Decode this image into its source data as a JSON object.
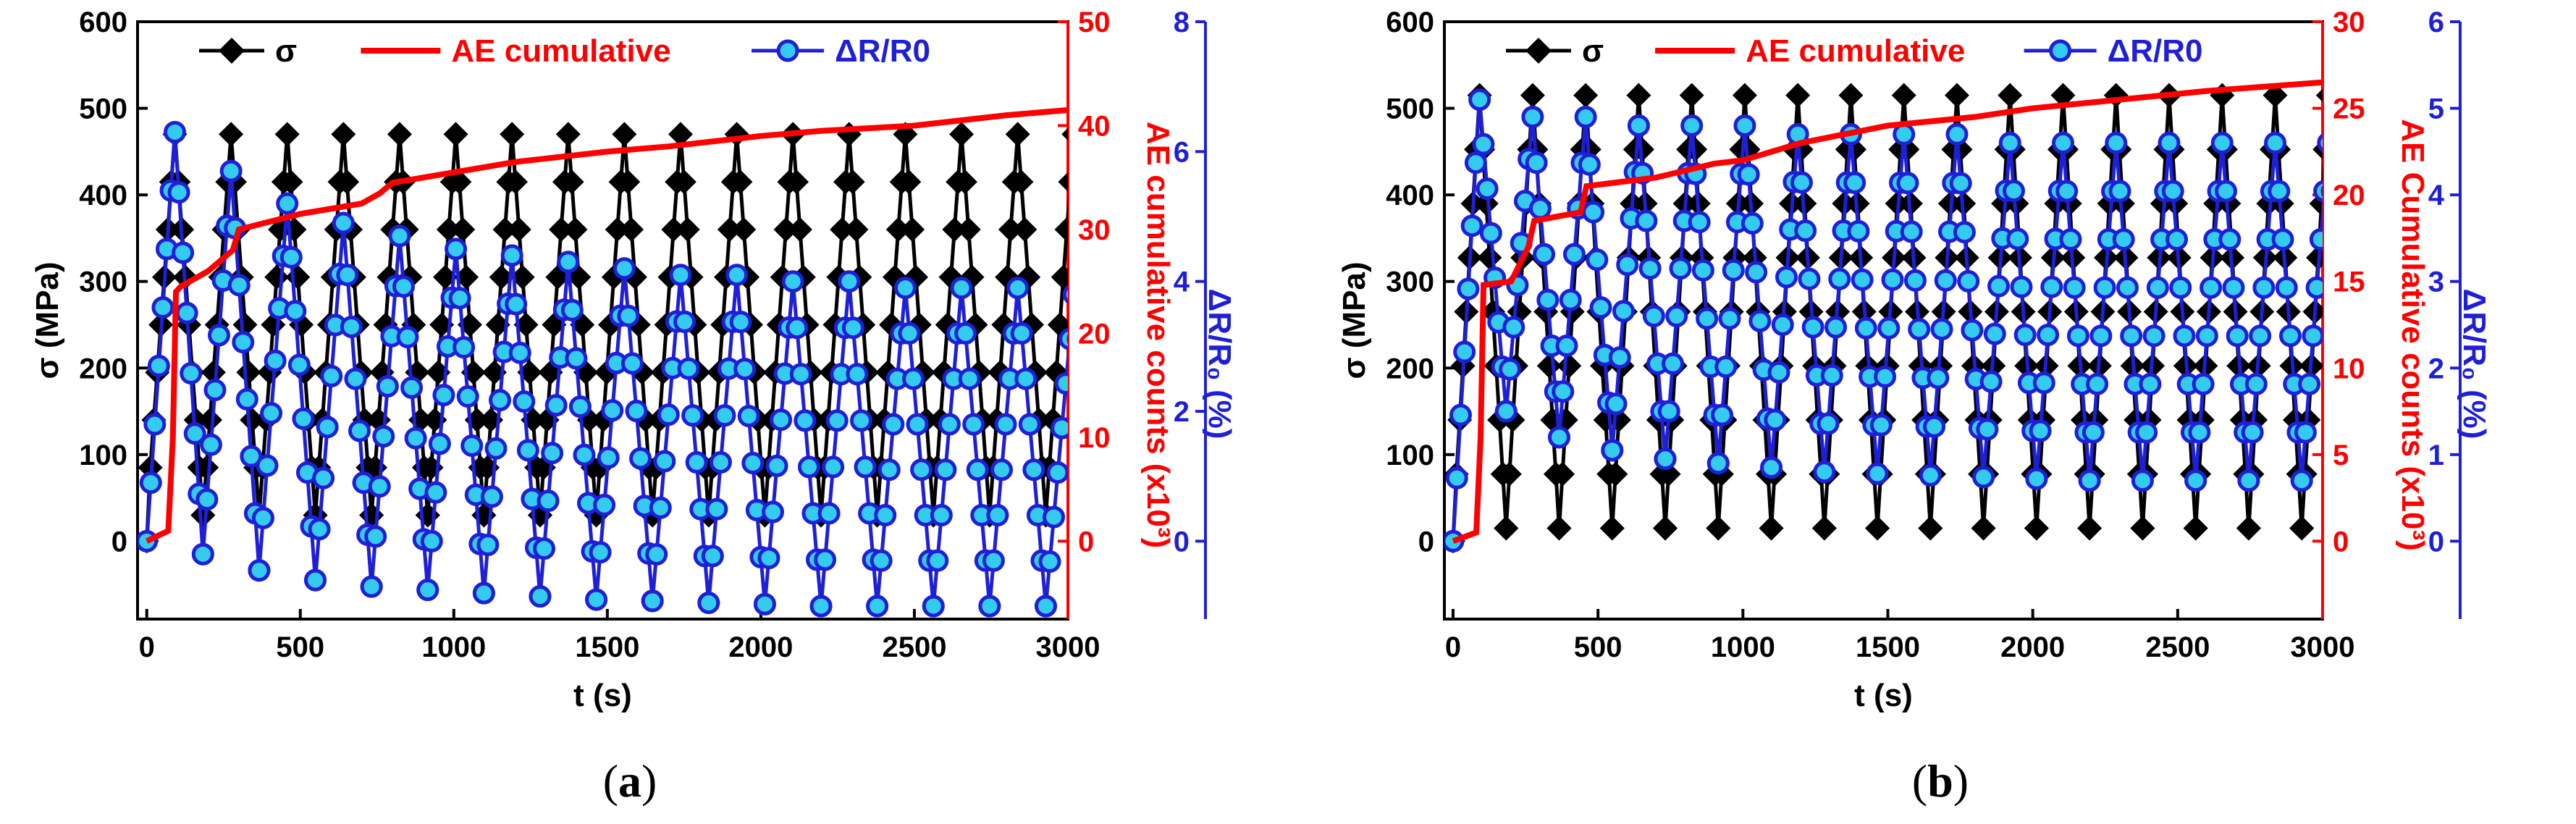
{
  "figure": {
    "panels": [
      {
        "caption": "(a)",
        "caption_letter": "a"
      },
      {
        "caption": "(b)",
        "caption_letter": "b"
      }
    ]
  },
  "chart_data": [
    {
      "type": "line",
      "panel": "a",
      "xlabel": "t (s)",
      "ylabel_left": "σ (MPa)",
      "ylabel_right1": "AE cumulative counts (x10³)",
      "ylabel_right2": "ΔR/R₀ (%)",
      "xlim": [
        -30,
        3000
      ],
      "xticks": [
        0,
        500,
        1000,
        1500,
        2000,
        2500,
        3000
      ],
      "ylim_left": [
        -90,
        600
      ],
      "yticks_left": [
        0,
        100,
        200,
        300,
        400,
        500,
        600
      ],
      "ylim_ae": [
        -7.5,
        50
      ],
      "yticks_ae": [
        0,
        10,
        20,
        30,
        40,
        50
      ],
      "ylim_dr": [
        -1.2,
        8
      ],
      "yticks_dr": [
        0,
        2,
        4,
        6,
        8
      ],
      "legend": [
        "σ",
        "AE cumulative",
        "ΔR/R0"
      ],
      "series": [
        {
          "name": "σ",
          "axis": "left",
          "color": "#000000",
          "marker": "diamond",
          "period": 183,
          "t0": 0,
          "max": 470,
          "min": 30
        },
        {
          "name": "AE cumulative",
          "axis": "ae",
          "color": "#ff0000",
          "points": [
            [
              0,
              0
            ],
            [
              70,
              1
            ],
            [
              85,
              10
            ],
            [
              95,
              24
            ],
            [
              110,
              24.5
            ],
            [
              200,
              26
            ],
            [
              280,
              28
            ],
            [
              300,
              30
            ],
            [
              500,
              31.5
            ],
            [
              700,
              32.5
            ],
            [
              760,
              33.5
            ],
            [
              800,
              34.5
            ],
            [
              1000,
              35.5
            ],
            [
              1200,
              36.5
            ],
            [
              1500,
              37.5
            ],
            [
              1700,
              38
            ],
            [
              2000,
              39
            ],
            [
              2200,
              39.5
            ],
            [
              2500,
              40
            ],
            [
              2800,
              41
            ],
            [
              3000,
              41.5
            ]
          ]
        },
        {
          "name": "ΔR/R0",
          "axis": "dr",
          "color": "#1f1fd8",
          "marker_fill": "#33ccee",
          "period": 183,
          "t0": 0,
          "peaks": [
            6.3,
            5.7,
            5.2,
            4.9,
            4.7,
            4.5,
            4.4,
            4.3,
            4.2,
            4.1,
            4.1,
            4.0,
            4.0,
            3.9,
            3.9,
            3.9,
            3.8
          ],
          "troughs": [
            0,
            -0.2,
            -0.45,
            -0.6,
            -0.7,
            -0.75,
            -0.8,
            -0.85,
            -0.9,
            -0.92,
            -0.95,
            -0.97,
            -1.0,
            -1.0,
            -1.0,
            -1.0,
            -1.0
          ]
        }
      ]
    },
    {
      "type": "line",
      "panel": "b",
      "xlabel": "t (s)",
      "ylabel_left": "σ (MPa)",
      "ylabel_right1": "AE Cumulative counts (x10³)",
      "ylabel_right2": "ΔR/R₀ (%)",
      "xlim": [
        -30,
        3000
      ],
      "xticks": [
        0,
        500,
        1000,
        1500,
        2000,
        2500,
        3000
      ],
      "ylim_left": [
        -90,
        600
      ],
      "yticks_left": [
        0,
        100,
        200,
        300,
        400,
        500,
        600
      ],
      "ylim_ae": [
        -4.5,
        30
      ],
      "yticks_ae": [
        0,
        5,
        10,
        15,
        20,
        25,
        30
      ],
      "ylim_dr": [
        -0.9,
        6
      ],
      "yticks_dr": [
        0,
        1,
        2,
        3,
        4,
        5,
        6
      ],
      "legend": [
        "σ",
        "AE cumulative",
        "ΔR/R0"
      ],
      "series": [
        {
          "name": "σ",
          "axis": "left",
          "color": "#000000",
          "marker": "diamond",
          "period": 183,
          "t0": 0,
          "max": 515,
          "min": 15
        },
        {
          "name": "AE cumulative",
          "axis": "ae",
          "color": "#ff0000",
          "points": [
            [
              0,
              0
            ],
            [
              80,
              0.5
            ],
            [
              95,
              6
            ],
            [
              105,
              14.8
            ],
            [
              200,
              15
            ],
            [
              260,
              17
            ],
            [
              280,
              18.5
            ],
            [
              440,
              19
            ],
            [
              460,
              20.5
            ],
            [
              700,
              21
            ],
            [
              900,
              21.8
            ],
            [
              1000,
              22
            ],
            [
              1200,
              23
            ],
            [
              1500,
              24
            ],
            [
              1800,
              24.5
            ],
            [
              2000,
              25
            ],
            [
              2300,
              25.5
            ],
            [
              2600,
              26
            ],
            [
              3000,
              26.5
            ]
          ]
        },
        {
          "name": "ΔR/R0",
          "axis": "dr",
          "color": "#1f1fd8",
          "marker_fill": "#33ccee",
          "period": 183,
          "t0": 0,
          "peaks": [
            5.1,
            4.9,
            4.9,
            4.8,
            4.8,
            4.8,
            4.7,
            4.7,
            4.7,
            4.7,
            4.6,
            4.6,
            4.6,
            4.6,
            4.6,
            4.6,
            4.6
          ],
          "troughs": [
            0,
            1.5,
            1.2,
            1.05,
            0.95,
            0.9,
            0.85,
            0.8,
            0.78,
            0.76,
            0.74,
            0.72,
            0.7,
            0.7,
            0.7,
            0.7,
            0.7
          ]
        }
      ]
    }
  ]
}
